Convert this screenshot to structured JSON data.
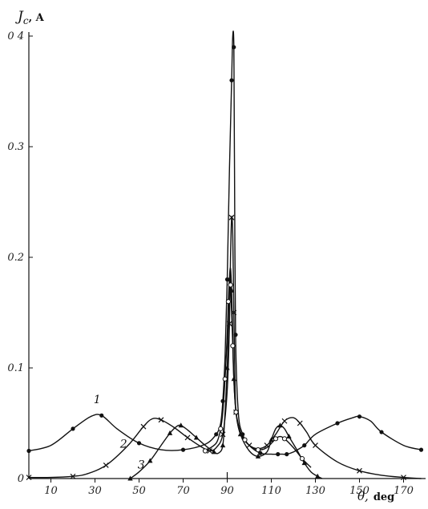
{
  "chart_data": {
    "type": "line",
    "title": "",
    "ylabel_symbol": "J",
    "ylabel_sub": "c",
    "ylabel_unit": ", A",
    "xlabel_symbol": "θ,",
    "xlabel_unit": "deg",
    "xlim": [
      0,
      180
    ],
    "ylim": [
      0,
      0.4
    ],
    "x_ticks": [
      10,
      30,
      50,
      70,
      90,
      110,
      130,
      150,
      170
    ],
    "x_tick_labels": [
      "10",
      "30",
      "50",
      "70",
      "90",
      "110",
      "130",
      "150",
      "170"
    ],
    "y_ticks": [
      0,
      0.1,
      0.2,
      0.3,
      0.4
    ],
    "y_tick_labels": [
      "0",
      "0.1",
      "0.2",
      "0.3",
      "0 4"
    ],
    "grid": false,
    "series": [
      {
        "name": "1",
        "marker": "dot",
        "x": [
          0,
          10,
          20,
          28,
          33,
          40,
          50,
          60,
          70,
          80,
          85,
          87,
          88,
          89,
          90,
          91,
          92,
          92.5,
          93,
          93.3,
          93.8,
          95,
          97,
          100,
          105,
          110,
          113,
          115,
          117,
          120,
          125,
          130,
          140,
          147,
          150,
          155,
          160,
          170,
          178
        ],
        "y": [
          0.025,
          0.03,
          0.045,
          0.056,
          0.057,
          0.045,
          0.032,
          0.026,
          0.026,
          0.031,
          0.04,
          0.05,
          0.07,
          0.11,
          0.18,
          0.28,
          0.36,
          0.4,
          0.39,
          0.28,
          0.13,
          0.06,
          0.04,
          0.03,
          0.023,
          0.022,
          0.022,
          0.022,
          0.022,
          0.024,
          0.03,
          0.04,
          0.05,
          0.055,
          0.056,
          0.052,
          0.042,
          0.03,
          0.026
        ]
      },
      {
        "name": "2",
        "marker": "cross",
        "x": [
          0,
          10,
          20,
          26,
          35,
          45,
          52,
          56,
          60,
          66,
          72,
          78,
          82,
          85,
          88,
          90,
          91,
          91.5,
          92,
          92.5,
          93,
          93.5,
          94,
          96,
          100,
          104,
          108,
          112,
          116,
          120,
          123,
          126,
          130,
          140,
          150,
          160,
          170,
          178
        ],
        "y": [
          0.001,
          0.001,
          0.002,
          0.004,
          0.012,
          0.03,
          0.047,
          0.054,
          0.053,
          0.046,
          0.037,
          0.029,
          0.025,
          0.028,
          0.04,
          0.08,
          0.14,
          0.2,
          0.236,
          0.22,
          0.15,
          0.09,
          0.06,
          0.04,
          0.03,
          0.027,
          0.03,
          0.04,
          0.052,
          0.055,
          0.05,
          0.042,
          0.03,
          0.015,
          0.007,
          0.003,
          0.001,
          0.0
        ]
      },
      {
        "name": "3",
        "marker": "triangle",
        "x": [
          46,
          50,
          55,
          60,
          64,
          67,
          69,
          72,
          76,
          80,
          84,
          86,
          88,
          89,
          90,
          90.5,
          91,
          91.5,
          92,
          92.5,
          93,
          94,
          96,
          100,
          104,
          108,
          110,
          112,
          114,
          116,
          118,
          121,
          125,
          128,
          131,
          133
        ],
        "y": [
          0.0,
          0.006,
          0.016,
          0.03,
          0.041,
          0.047,
          0.048,
          0.044,
          0.037,
          0.03,
          0.024,
          0.023,
          0.03,
          0.06,
          0.1,
          0.14,
          0.18,
          0.19,
          0.17,
          0.13,
          0.09,
          0.06,
          0.04,
          0.025,
          0.02,
          0.024,
          0.035,
          0.045,
          0.048,
          0.045,
          0.038,
          0.028,
          0.014,
          0.006,
          0.002,
          0.0
        ]
      },
      {
        "name": "",
        "marker": "circle",
        "x": [
          80,
          85,
          87,
          88,
          89,
          90,
          90.5,
          91,
          91.5,
          92,
          92.5,
          93,
          94,
          96,
          98,
          100,
          104,
          108,
          112,
          114,
          116,
          120,
          124,
          128
        ],
        "y": [
          0.025,
          0.032,
          0.045,
          0.06,
          0.09,
          0.13,
          0.16,
          0.18,
          0.175,
          0.15,
          0.12,
          0.09,
          0.06,
          0.042,
          0.035,
          0.03,
          0.026,
          0.028,
          0.036,
          0.038,
          0.036,
          0.028,
          0.018,
          0.01
        ]
      }
    ],
    "curve_labels": [
      {
        "text": "1",
        "x": 31,
        "y": 0.068
      },
      {
        "text": "2",
        "x": 43,
        "y": 0.028
      },
      {
        "text": "3",
        "x": 51,
        "y": 0.009
      }
    ]
  }
}
